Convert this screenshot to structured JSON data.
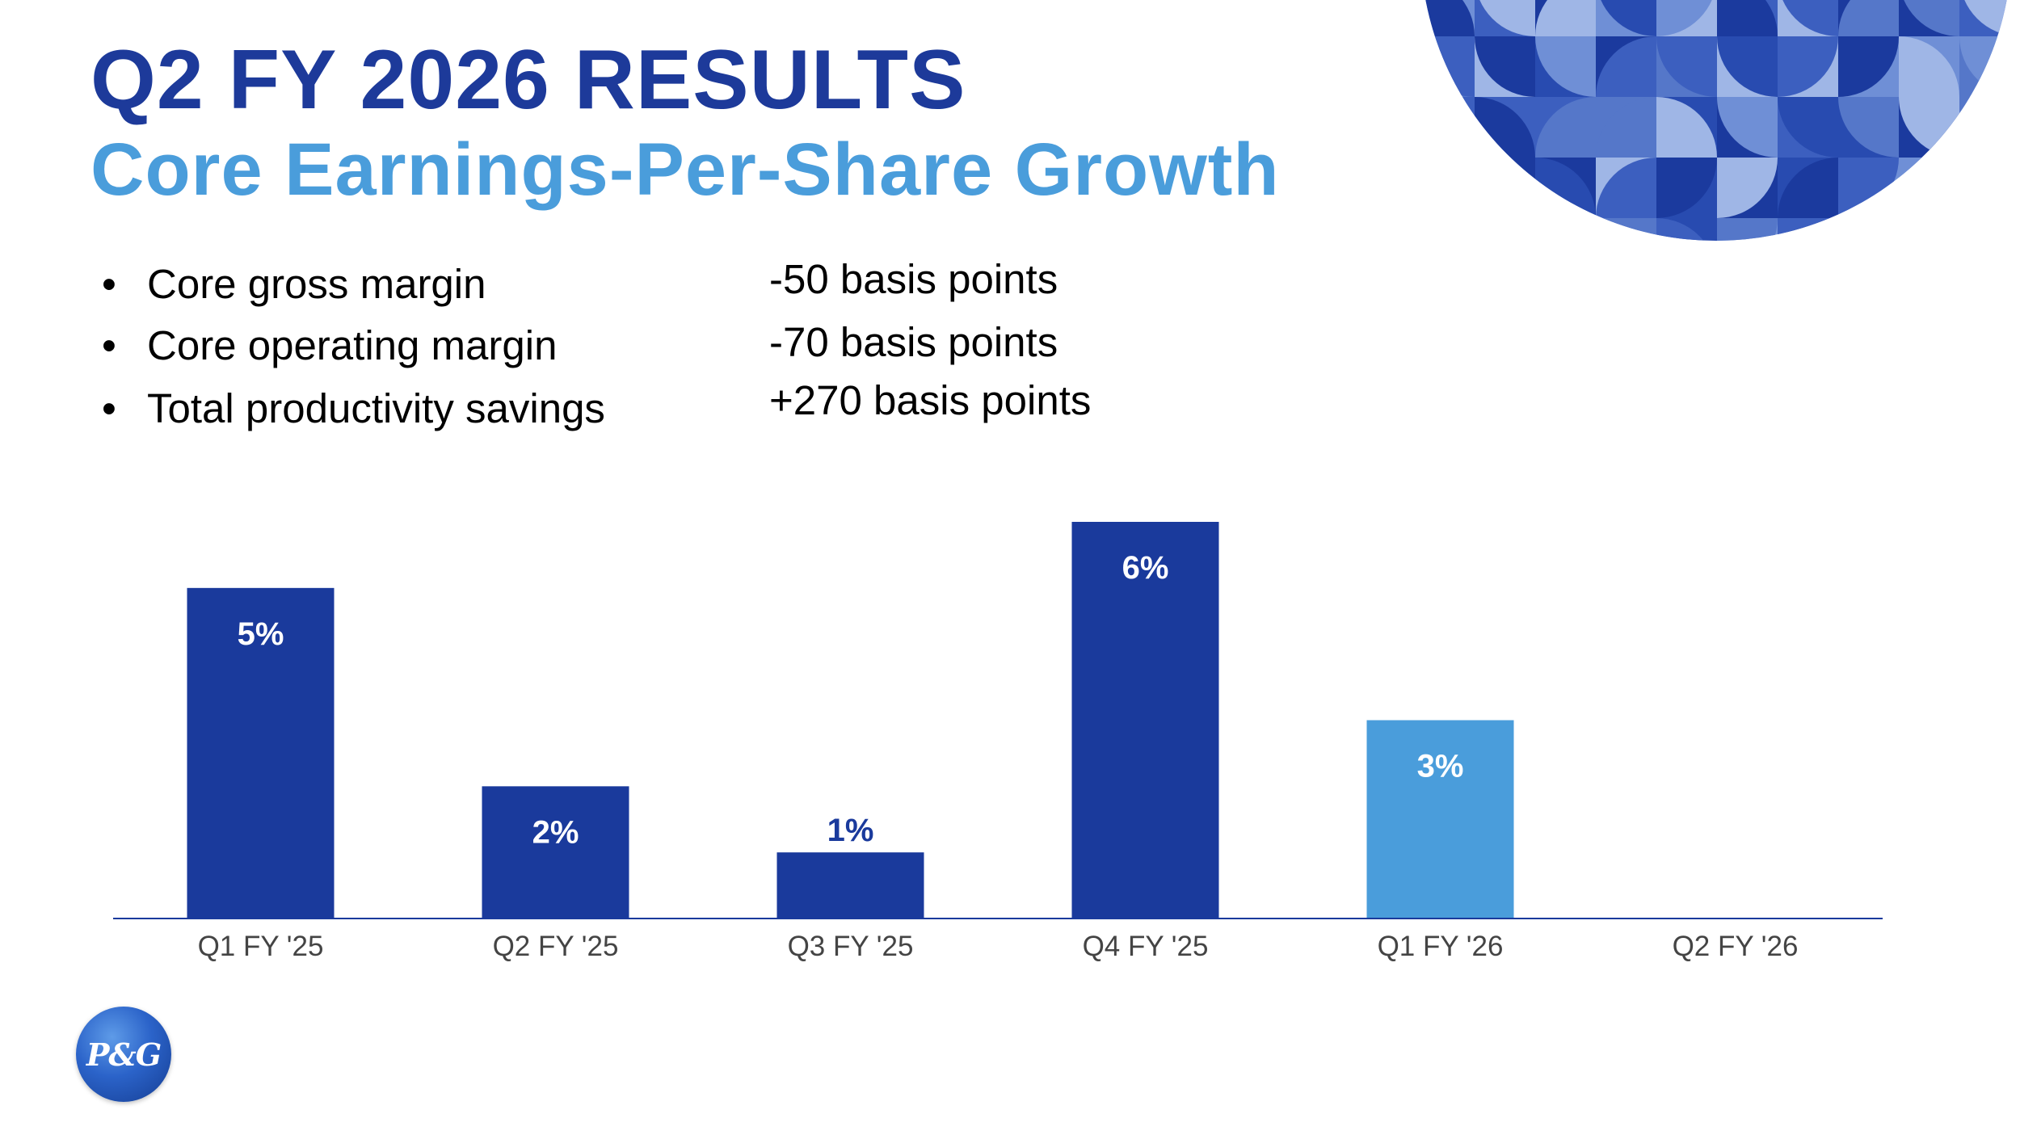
{
  "slide": {
    "title": "Q2 FY 2026 RESULTS",
    "subtitle": "Core Earnings-Per-Share Growth"
  },
  "metrics": [
    {
      "label": "Core gross margin",
      "value": "-50 basis points"
    },
    {
      "label": "Core operating margin",
      "value": "-70 basis points"
    },
    {
      "label": "Total productivity savings",
      "value": "+270 basis points"
    }
  ],
  "logo": {
    "text": "P&G",
    "icon": "pg-logo-icon"
  },
  "colors": {
    "title": "#1d3a9a",
    "subtitle": "#4a9ddb",
    "bar_dark": "#1a3a9c",
    "bar_light": "#4a9ddb",
    "axis": "#1a3a9c"
  },
  "chart_data": {
    "type": "bar",
    "title": "Core Earnings-Per-Share Growth",
    "xlabel": "",
    "ylabel": "",
    "categories": [
      "Q1 FY '25",
      "Q2 FY '25",
      "Q3 FY '25",
      "Q4 FY '25",
      "Q1 FY '26",
      "Q2 FY '26"
    ],
    "values": [
      5,
      2,
      1,
      6,
      3,
      null
    ],
    "labels": [
      "5%",
      "2%",
      "1%",
      "6%",
      "3%",
      ""
    ],
    "highlight": [
      false,
      false,
      false,
      false,
      true,
      false
    ],
    "ylim": [
      0,
      6
    ],
    "grid": false,
    "legend": "none"
  }
}
